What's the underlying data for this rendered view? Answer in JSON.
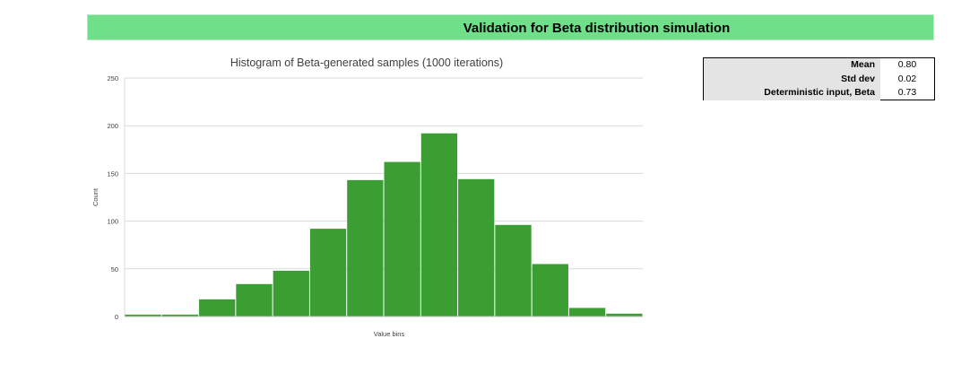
{
  "header": {
    "title": "Validation for Beta distribution simulation"
  },
  "chart_data": {
    "type": "bar",
    "title": "Histogram of Beta-generated samples (1000 iterations)",
    "xlabel": "Value bins",
    "ylabel": "Count",
    "ylim": [
      0,
      250
    ],
    "yticks": [
      0,
      50,
      100,
      150,
      200,
      250
    ],
    "grid": true,
    "series": [
      {
        "name": "Count",
        "color": "#3a9e32",
        "values": [
          2,
          2,
          18,
          34,
          48,
          92,
          143,
          162,
          192,
          144,
          96,
          55,
          9,
          3
        ]
      }
    ]
  },
  "stats": {
    "rows": [
      {
        "label": "Mean",
        "value": "0.80"
      },
      {
        "label": "Std dev",
        "value": "0.02"
      },
      {
        "label": "Deterministic input, Beta",
        "value": "0.73"
      }
    ]
  }
}
